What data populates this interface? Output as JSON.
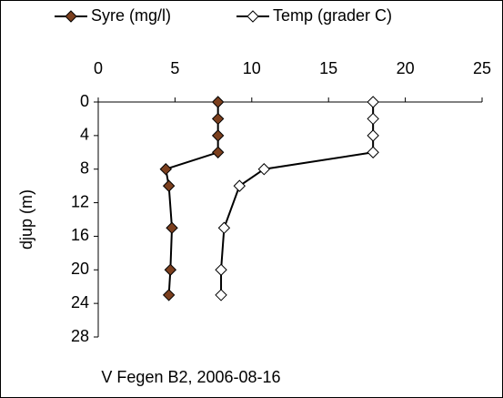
{
  "chart_data": {
    "type": "line",
    "title": "V Fegen  B2,  2006-08-16",
    "y_label": "djup (m)",
    "y": [
      0,
      2,
      4,
      6,
      8,
      10,
      15,
      20,
      23
    ],
    "series": [
      {
        "name": "Syre (mg/l)",
        "color": "#7b3f1e",
        "values": [
          7.8,
          7.8,
          7.8,
          7.8,
          4.4,
          4.6,
          4.8,
          4.7,
          4.6
        ]
      },
      {
        "name": "Temp (grader C)",
        "color": "#ffffff",
        "values": [
          17.9,
          17.9,
          17.9,
          17.9,
          10.8,
          9.2,
          8.2,
          8.0,
          8.0
        ]
      }
    ],
    "xlim": [
      0,
      25
    ],
    "xticks": [
      0,
      5,
      10,
      15,
      20,
      25
    ],
    "ylim": [
      0,
      28
    ],
    "yticks": [
      0,
      4,
      8,
      12,
      16,
      20,
      24,
      28
    ],
    "y_inverted": true,
    "x_axis_position": "top"
  }
}
